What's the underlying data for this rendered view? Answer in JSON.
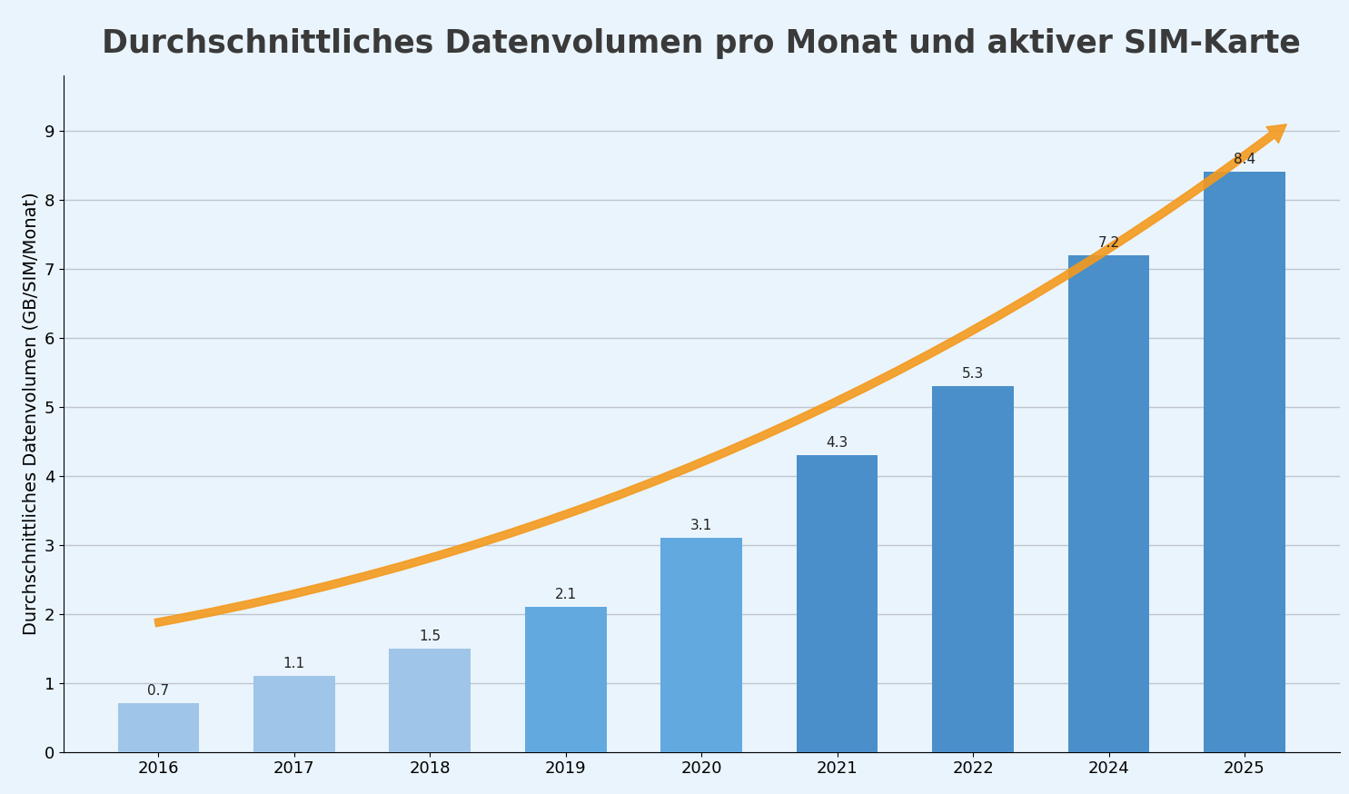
{
  "chart_data": {
    "type": "bar",
    "title": "Durchschnittliches Datenvolumen pro Monat und aktiver SIM-Karte",
    "y_label": "Durchschnittliches Datenvolumen (GB/SIM/Monat)",
    "categories": [
      "2016",
      "2017",
      "2018",
      "2019",
      "2020",
      "2021",
      "2022",
      "2024",
      "2025"
    ],
    "values": [
      0.7,
      1.1,
      1.5,
      2.1,
      3.1,
      4.3,
      5.3,
      7.2,
      8.4
    ],
    "colors": [
      "#9fc5e8",
      "#9fc5e8",
      "#9fc5e8",
      "#62a9e0",
      "#62a9e0",
      "#4a8fc9",
      "#4a8fc9",
      "#4a8fc9",
      "#4a8fc9"
    ],
    "ylim": [
      0,
      9.8
    ],
    "yticks": [
      0,
      1,
      2,
      3,
      4,
      5,
      6,
      7,
      8,
      9
    ],
    "grid": true,
    "data_labels": true
  }
}
